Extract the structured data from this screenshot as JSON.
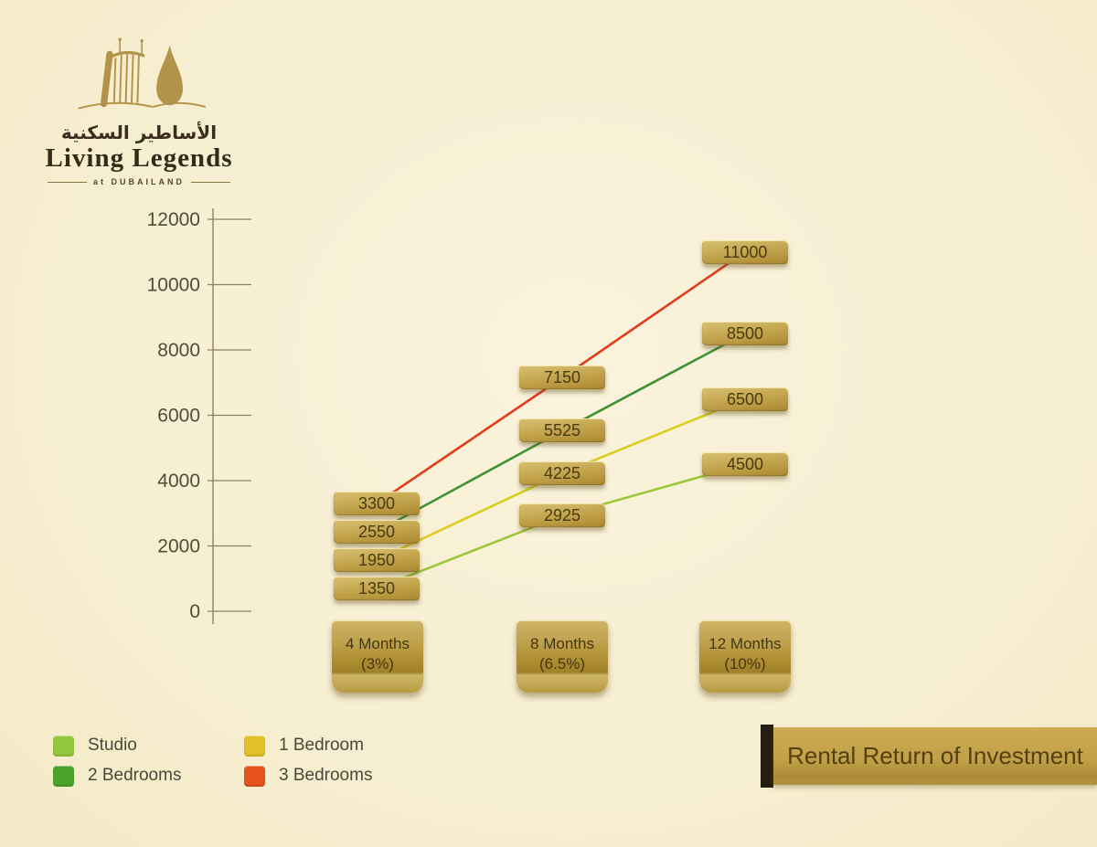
{
  "brand": {
    "arabic_name": "الأساطير السكنية",
    "name": "Living Legends",
    "tagline": "at DUBAILAND"
  },
  "title": "Rental Return of Investment",
  "chart_data": {
    "type": "line",
    "title": "Rental Return of Investment",
    "categories": [
      {
        "label": "4 Months",
        "sub": "(3%)"
      },
      {
        "label": "8 Months",
        "sub": "(6.5%)"
      },
      {
        "label": "12 Months",
        "sub": "(10%)"
      }
    ],
    "y_ticks": [
      0,
      2000,
      4000,
      6000,
      8000,
      10000,
      12000
    ],
    "ylim": [
      0,
      12000
    ],
    "grid": false,
    "legend_position": "bottom-left",
    "series": [
      {
        "name": "Studio",
        "values": [
          1350,
          2925,
          4500
        ],
        "color": "#94c83d",
        "line_color": "#9cc73b"
      },
      {
        "name": "1 Bedroom",
        "values": [
          1950,
          4225,
          6500
        ],
        "color": "#e3bf28",
        "line_color": "#d9ce1e"
      },
      {
        "name": "2 Bedrooms",
        "values": [
          2550,
          5525,
          8500
        ],
        "color": "#4ca32b",
        "line_color": "#3f9234"
      },
      {
        "name": "3 Bedrooms",
        "values": [
          3300,
          7150,
          11000
        ],
        "color": "#e8531d",
        "line_color": "#e23c1a"
      }
    ],
    "colors": {
      "background": "#f7efd2",
      "gold": "#bb9c48",
      "axis": "#8d8163",
      "plaque_text": "#4a3a12",
      "banner_accent": "#241d11"
    }
  }
}
